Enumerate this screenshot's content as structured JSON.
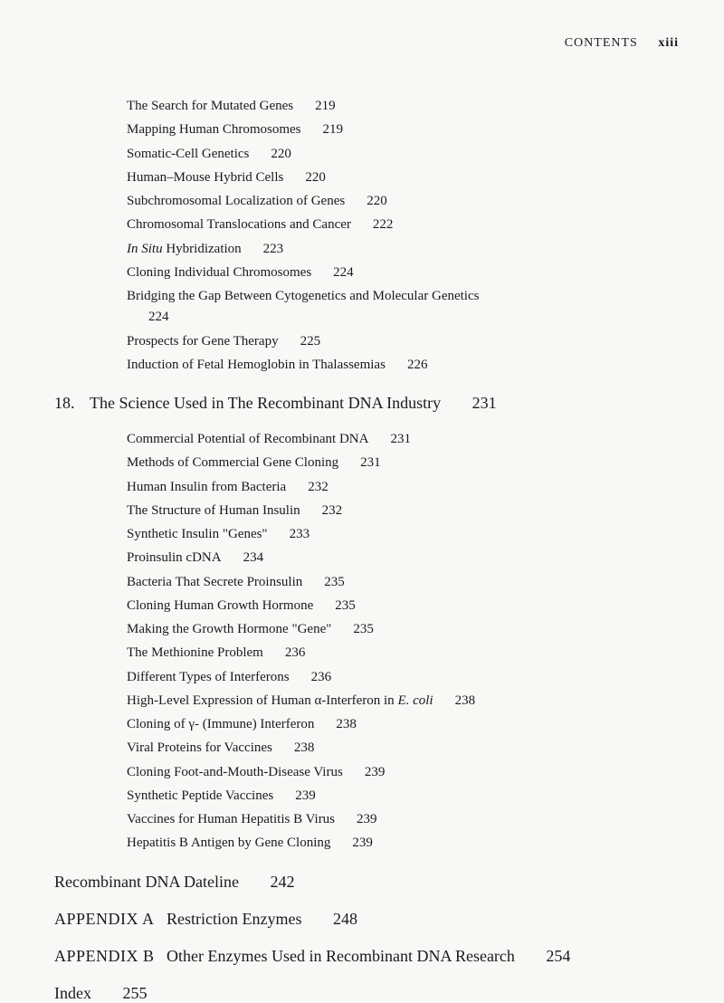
{
  "header": {
    "label": "CONTENTS",
    "page": "xiii"
  },
  "section1": {
    "items": [
      {
        "title": "The Search for Mutated Genes",
        "page": "219"
      },
      {
        "title": "Mapping Human Chromosomes",
        "page": "219"
      },
      {
        "title": "Somatic-Cell Genetics",
        "page": "220"
      },
      {
        "title": "Human–Mouse Hybrid Cells",
        "page": "220"
      },
      {
        "title": "Subchromosomal Localization of Genes",
        "page": "220"
      },
      {
        "title": "Chromosomal Translocations and Cancer",
        "page": "222"
      },
      {
        "title_prefix": "In Situ",
        "title_suffix": " Hybridization",
        "page": "223",
        "italic_prefix": true
      },
      {
        "title": "Cloning Individual Chromosomes",
        "page": "224"
      },
      {
        "title": "Bridging the Gap Between Cytogenetics and Molecular Genetics",
        "page": "224",
        "wrap": true
      },
      {
        "title": "Prospects for Gene Therapy",
        "page": "225"
      },
      {
        "title": "Induction of Fetal Hemoglobin in Thalassemias",
        "page": "226"
      }
    ]
  },
  "chapter18": {
    "num": "18.",
    "title": "The Science Used in The Recombinant DNA Industry",
    "page": "231",
    "items": [
      {
        "title": "Commercial Potential of Recombinant DNA",
        "page": "231"
      },
      {
        "title": "Methods of Commercial Gene Cloning",
        "page": "231"
      },
      {
        "title": "Human Insulin from Bacteria",
        "page": "232"
      },
      {
        "title": "The Structure of Human Insulin",
        "page": "232"
      },
      {
        "title": "Synthetic Insulin \"Genes\"",
        "page": "233"
      },
      {
        "title": "Proinsulin cDNA",
        "page": "234"
      },
      {
        "title": "Bacteria That Secrete Proinsulin",
        "page": "235"
      },
      {
        "title": "Cloning Human Growth Hormone",
        "page": "235"
      },
      {
        "title": "Making the Growth Hormone \"Gene\"",
        "page": "235"
      },
      {
        "title": "The Methionine Problem",
        "page": "236"
      },
      {
        "title": "Different Types of Interferons",
        "page": "236"
      },
      {
        "title_prefix": "High-Level Expression of Human α-Interferon in ",
        "title_italic": "E. coli",
        "page": "238"
      },
      {
        "title": "Cloning of γ- (Immune) Interferon",
        "page": "238"
      },
      {
        "title": "Viral Proteins for Vaccines",
        "page": "238"
      },
      {
        "title": "Cloning Foot-and-Mouth-Disease Virus",
        "page": "239"
      },
      {
        "title": "Synthetic Peptide Vaccines",
        "page": "239"
      },
      {
        "title": "Vaccines for Human Hepatitis B Virus",
        "page": "239"
      },
      {
        "title": "Hepatitis B Antigen by Gene Cloning",
        "page": "239"
      }
    ]
  },
  "sections": {
    "dateline": {
      "title": "Recombinant DNA Dateline",
      "page": "242"
    },
    "appendixA": {
      "label": "APPENDIX A",
      "title": "Restriction Enzymes",
      "page": "248"
    },
    "appendixB": {
      "label": "APPENDIX B",
      "title": "Other Enzymes Used in Recombinant DNA Research",
      "page": "254"
    },
    "index": {
      "title": "Index",
      "page": "255"
    }
  }
}
